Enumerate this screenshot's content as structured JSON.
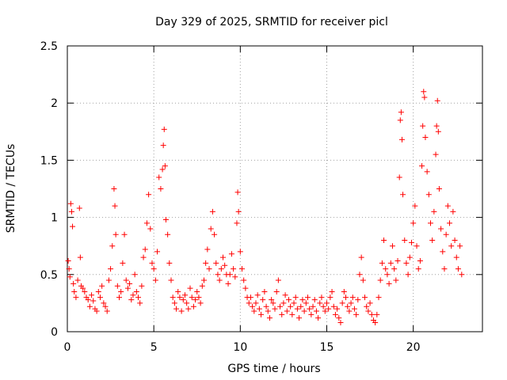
{
  "chart_data": {
    "type": "scatter",
    "title": "Day 329 of 2025, SRMTID for receiver picl",
    "xlabel": "GPS time / hours",
    "ylabel": "SRMTID / TECUs",
    "xlim": [
      0,
      24
    ],
    "ylim": [
      0,
      2.5
    ],
    "xticks": [
      0,
      5,
      10,
      15,
      20
    ],
    "xtick_labels": [
      "0",
      "5",
      "10",
      "15",
      "20"
    ],
    "yticks": [
      0,
      0.5,
      1,
      1.5,
      2,
      2.5
    ],
    "ytick_labels": [
      "0",
      "0.5",
      "1",
      "1.5",
      "2",
      "2.5"
    ],
    "grid": true,
    "marker": "+",
    "color": "#ff0000",
    "series": [
      {
        "name": "SRMTID",
        "points": [
          [
            0.05,
            0.62
          ],
          [
            0.1,
            0.55
          ],
          [
            0.15,
            0.48
          ],
          [
            0.2,
            1.12
          ],
          [
            0.25,
            1.05
          ],
          [
            0.3,
            0.92
          ],
          [
            0.35,
            0.42
          ],
          [
            0.4,
            0.35
          ],
          [
            0.5,
            0.3
          ],
          [
            0.6,
            0.45
          ],
          [
            0.7,
            1.08
          ],
          [
            0.75,
            0.65
          ],
          [
            0.8,
            0.4
          ],
          [
            0.9,
            0.38
          ],
          [
            1.0,
            0.35
          ],
          [
            1.1,
            0.3
          ],
          [
            1.2,
            0.28
          ],
          [
            1.3,
            0.22
          ],
          [
            1.4,
            0.32
          ],
          [
            1.5,
            0.27
          ],
          [
            1.6,
            0.2
          ],
          [
            1.7,
            0.18
          ],
          [
            1.8,
            0.35
          ],
          [
            1.9,
            0.3
          ],
          [
            2.0,
            0.4
          ],
          [
            2.1,
            0.25
          ],
          [
            2.2,
            0.22
          ],
          [
            2.3,
            0.18
          ],
          [
            2.4,
            0.45
          ],
          [
            2.5,
            0.55
          ],
          [
            2.6,
            0.75
          ],
          [
            2.7,
            1.25
          ],
          [
            2.75,
            1.1
          ],
          [
            2.8,
            0.85
          ],
          [
            2.9,
            0.4
          ],
          [
            3.0,
            0.3
          ],
          [
            3.1,
            0.35
          ],
          [
            3.2,
            0.6
          ],
          [
            3.3,
            0.85
          ],
          [
            3.4,
            0.45
          ],
          [
            3.5,
            0.38
          ],
          [
            3.6,
            0.42
          ],
          [
            3.7,
            0.28
          ],
          [
            3.8,
            0.32
          ],
          [
            3.9,
            0.5
          ],
          [
            4.0,
            0.35
          ],
          [
            4.1,
            0.3
          ],
          [
            4.2,
            0.25
          ],
          [
            4.3,
            0.4
          ],
          [
            4.4,
            0.65
          ],
          [
            4.5,
            0.72
          ],
          [
            4.6,
            0.95
          ],
          [
            4.7,
            1.2
          ],
          [
            4.8,
            0.9
          ],
          [
            4.9,
            0.6
          ],
          [
            5.0,
            0.55
          ],
          [
            5.1,
            0.45
          ],
          [
            5.2,
            0.7
          ],
          [
            5.3,
            1.35
          ],
          [
            5.4,
            1.25
          ],
          [
            5.5,
            1.42
          ],
          [
            5.55,
            1.63
          ],
          [
            5.6,
            1.77
          ],
          [
            5.65,
            1.45
          ],
          [
            5.7,
            0.98
          ],
          [
            5.8,
            0.85
          ],
          [
            5.9,
            0.6
          ],
          [
            6.0,
            0.45
          ],
          [
            6.1,
            0.3
          ],
          [
            6.2,
            0.25
          ],
          [
            6.3,
            0.2
          ],
          [
            6.4,
            0.35
          ],
          [
            6.5,
            0.3
          ],
          [
            6.6,
            0.18
          ],
          [
            6.7,
            0.28
          ],
          [
            6.8,
            0.32
          ],
          [
            6.9,
            0.25
          ],
          [
            7.0,
            0.2
          ],
          [
            7.1,
            0.38
          ],
          [
            7.2,
            0.3
          ],
          [
            7.3,
            0.22
          ],
          [
            7.4,
            0.28
          ],
          [
            7.5,
            0.35
          ],
          [
            7.6,
            0.3
          ],
          [
            7.7,
            0.25
          ],
          [
            7.8,
            0.4
          ],
          [
            7.9,
            0.45
          ],
          [
            8.0,
            0.6
          ],
          [
            8.1,
            0.72
          ],
          [
            8.2,
            0.55
          ],
          [
            8.3,
            0.9
          ],
          [
            8.4,
            1.05
          ],
          [
            8.5,
            0.85
          ],
          [
            8.6,
            0.6
          ],
          [
            8.7,
            0.5
          ],
          [
            8.8,
            0.45
          ],
          [
            8.9,
            0.55
          ],
          [
            9.0,
            0.65
          ],
          [
            9.1,
            0.58
          ],
          [
            9.2,
            0.5
          ],
          [
            9.3,
            0.42
          ],
          [
            9.4,
            0.5
          ],
          [
            9.5,
            0.68
          ],
          [
            9.6,
            0.55
          ],
          [
            9.7,
            0.48
          ],
          [
            9.8,
            0.95
          ],
          [
            9.85,
            1.22
          ],
          [
            9.9,
            1.05
          ],
          [
            10.0,
            0.7
          ],
          [
            10.1,
            0.55
          ],
          [
            10.2,
            0.45
          ],
          [
            10.3,
            0.38
          ],
          [
            10.4,
            0.3
          ],
          [
            10.5,
            0.25
          ],
          [
            10.6,
            0.3
          ],
          [
            10.7,
            0.22
          ],
          [
            10.8,
            0.18
          ],
          [
            10.9,
            0.25
          ],
          [
            11.0,
            0.32
          ],
          [
            11.1,
            0.2
          ],
          [
            11.2,
            0.15
          ],
          [
            11.3,
            0.28
          ],
          [
            11.4,
            0.35
          ],
          [
            11.5,
            0.22
          ],
          [
            11.6,
            0.18
          ],
          [
            11.7,
            0.12
          ],
          [
            11.8,
            0.28
          ],
          [
            11.9,
            0.25
          ],
          [
            12.0,
            0.2
          ],
          [
            12.1,
            0.35
          ],
          [
            12.2,
            0.45
          ],
          [
            12.3,
            0.22
          ],
          [
            12.4,
            0.15
          ],
          [
            12.5,
            0.25
          ],
          [
            12.6,
            0.32
          ],
          [
            12.7,
            0.18
          ],
          [
            12.8,
            0.28
          ],
          [
            12.9,
            0.22
          ],
          [
            13.0,
            0.15
          ],
          [
            13.1,
            0.25
          ],
          [
            13.2,
            0.3
          ],
          [
            13.3,
            0.2
          ],
          [
            13.4,
            0.12
          ],
          [
            13.5,
            0.22
          ],
          [
            13.6,
            0.28
          ],
          [
            13.7,
            0.18
          ],
          [
            13.8,
            0.25
          ],
          [
            13.9,
            0.3
          ],
          [
            14.0,
            0.2
          ],
          [
            14.1,
            0.15
          ],
          [
            14.2,
            0.22
          ],
          [
            14.3,
            0.28
          ],
          [
            14.4,
            0.18
          ],
          [
            14.5,
            0.12
          ],
          [
            14.6,
            0.25
          ],
          [
            14.7,
            0.3
          ],
          [
            14.8,
            0.22
          ],
          [
            14.9,
            0.18
          ],
          [
            15.0,
            0.25
          ],
          [
            15.1,
            0.2
          ],
          [
            15.2,
            0.3
          ],
          [
            15.3,
            0.35
          ],
          [
            15.4,
            0.22
          ],
          [
            15.5,
            0.15
          ],
          [
            15.6,
            0.2
          ],
          [
            15.7,
            0.12
          ],
          [
            15.8,
            0.08
          ],
          [
            15.9,
            0.25
          ],
          [
            16.0,
            0.35
          ],
          [
            16.1,
            0.3
          ],
          [
            16.2,
            0.22
          ],
          [
            16.3,
            0.18
          ],
          [
            16.4,
            0.25
          ],
          [
            16.5,
            0.3
          ],
          [
            16.6,
            0.2
          ],
          [
            16.7,
            0.15
          ],
          [
            16.8,
            0.28
          ],
          [
            16.9,
            0.5
          ],
          [
            17.0,
            0.65
          ],
          [
            17.1,
            0.45
          ],
          [
            17.2,
            0.3
          ],
          [
            17.3,
            0.22
          ],
          [
            17.4,
            0.18
          ],
          [
            17.5,
            0.25
          ],
          [
            17.6,
            0.15
          ],
          [
            17.7,
            0.1
          ],
          [
            17.8,
            0.08
          ],
          [
            17.9,
            0.15
          ],
          [
            18.0,
            0.3
          ],
          [
            18.1,
            0.45
          ],
          [
            18.2,
            0.6
          ],
          [
            18.3,
            0.8
          ],
          [
            18.4,
            0.55
          ],
          [
            18.5,
            0.5
          ],
          [
            18.6,
            0.42
          ],
          [
            18.7,
            0.6
          ],
          [
            18.8,
            0.75
          ],
          [
            18.9,
            0.55
          ],
          [
            19.0,
            0.45
          ],
          [
            19.1,
            0.62
          ],
          [
            19.2,
            1.35
          ],
          [
            19.25,
            1.85
          ],
          [
            19.3,
            1.92
          ],
          [
            19.35,
            1.68
          ],
          [
            19.4,
            1.2
          ],
          [
            19.5,
            0.8
          ],
          [
            19.6,
            0.6
          ],
          [
            19.7,
            0.5
          ],
          [
            19.8,
            0.65
          ],
          [
            19.9,
            0.78
          ],
          [
            20.0,
            0.95
          ],
          [
            20.1,
            1.1
          ],
          [
            20.2,
            0.75
          ],
          [
            20.3,
            0.55
          ],
          [
            20.4,
            0.62
          ],
          [
            20.5,
            1.45
          ],
          [
            20.55,
            1.8
          ],
          [
            20.6,
            2.1
          ],
          [
            20.65,
            2.05
          ],
          [
            20.7,
            1.7
          ],
          [
            20.8,
            1.4
          ],
          [
            20.9,
            1.2
          ],
          [
            21.0,
            0.95
          ],
          [
            21.1,
            0.8
          ],
          [
            21.2,
            1.05
          ],
          [
            21.3,
            1.55
          ],
          [
            21.35,
            1.8
          ],
          [
            21.4,
            2.02
          ],
          [
            21.45,
            1.75
          ],
          [
            21.5,
            1.25
          ],
          [
            21.6,
            0.9
          ],
          [
            21.7,
            0.7
          ],
          [
            21.8,
            0.55
          ],
          [
            21.9,
            0.85
          ],
          [
            22.0,
            1.1
          ],
          [
            22.1,
            0.95
          ],
          [
            22.2,
            0.75
          ],
          [
            22.3,
            1.05
          ],
          [
            22.4,
            0.8
          ],
          [
            22.5,
            0.65
          ],
          [
            22.6,
            0.55
          ],
          [
            22.7,
            0.75
          ],
          [
            22.8,
            0.5
          ]
        ]
      }
    ]
  }
}
